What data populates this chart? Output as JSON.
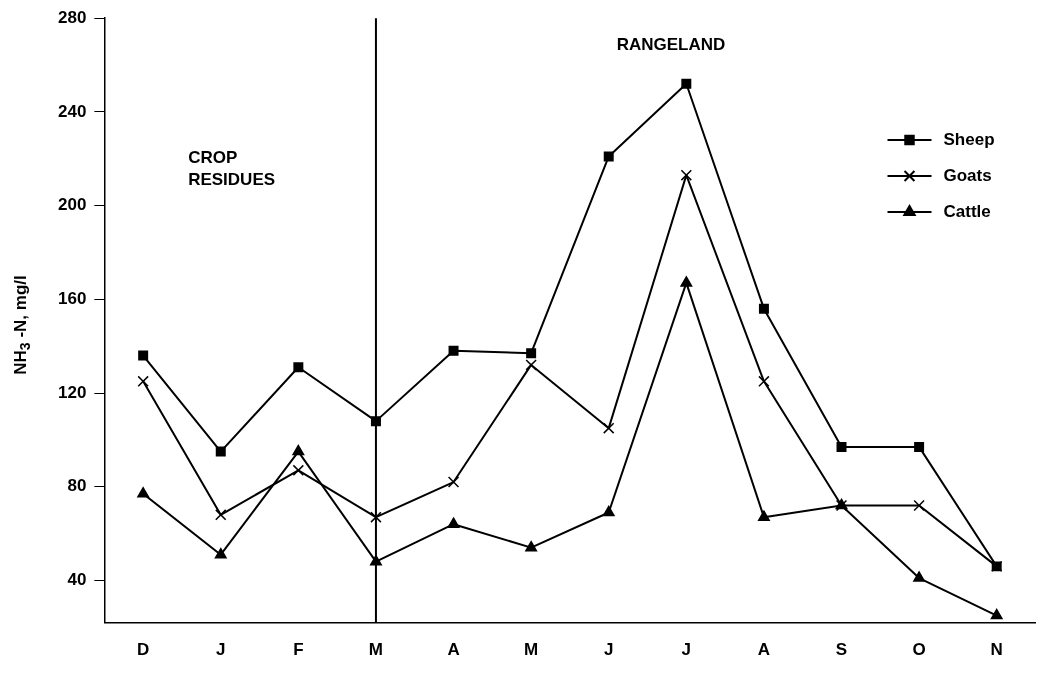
{
  "chart_data": {
    "type": "line",
    "ylabel": "NH$_{3}$ -N, mg/l",
    "categories": [
      "D",
      "J",
      "F",
      "M",
      "A",
      "M",
      "J",
      "J",
      "A",
      "S",
      "O",
      "N"
    ],
    "series": [
      {
        "name": "Sheep",
        "color": "#000000",
        "marker": "square",
        "values": [
          136,
          95,
          131,
          108,
          138,
          137,
          221,
          252,
          156,
          97,
          97,
          46
        ]
      },
      {
        "name": "Goats",
        "color": "#000000",
        "marker": "cross",
        "values": [
          125,
          68,
          87,
          67,
          82,
          132,
          105,
          213,
          125,
          72,
          72,
          46
        ]
      },
      {
        "name": "Cattle",
        "color": "#000000",
        "marker": "triangle",
        "values": [
          77,
          51,
          95,
          48,
          64,
          54,
          69,
          167,
          67,
          72,
          41,
          25
        ]
      }
    ],
    "ylim": [
      22,
      280
    ],
    "yticks": [
      40,
      80,
      120,
      160,
      200,
      240,
      280
    ],
    "ref_lines": [
      {
        "axis": "x",
        "value": "M",
        "color": "#000000"
      }
    ],
    "annotations": [
      "CROP\nRESIDUES",
      "RANGELAND"
    ],
    "grid": false,
    "legend": "top right",
    "line_style": "solid"
  }
}
